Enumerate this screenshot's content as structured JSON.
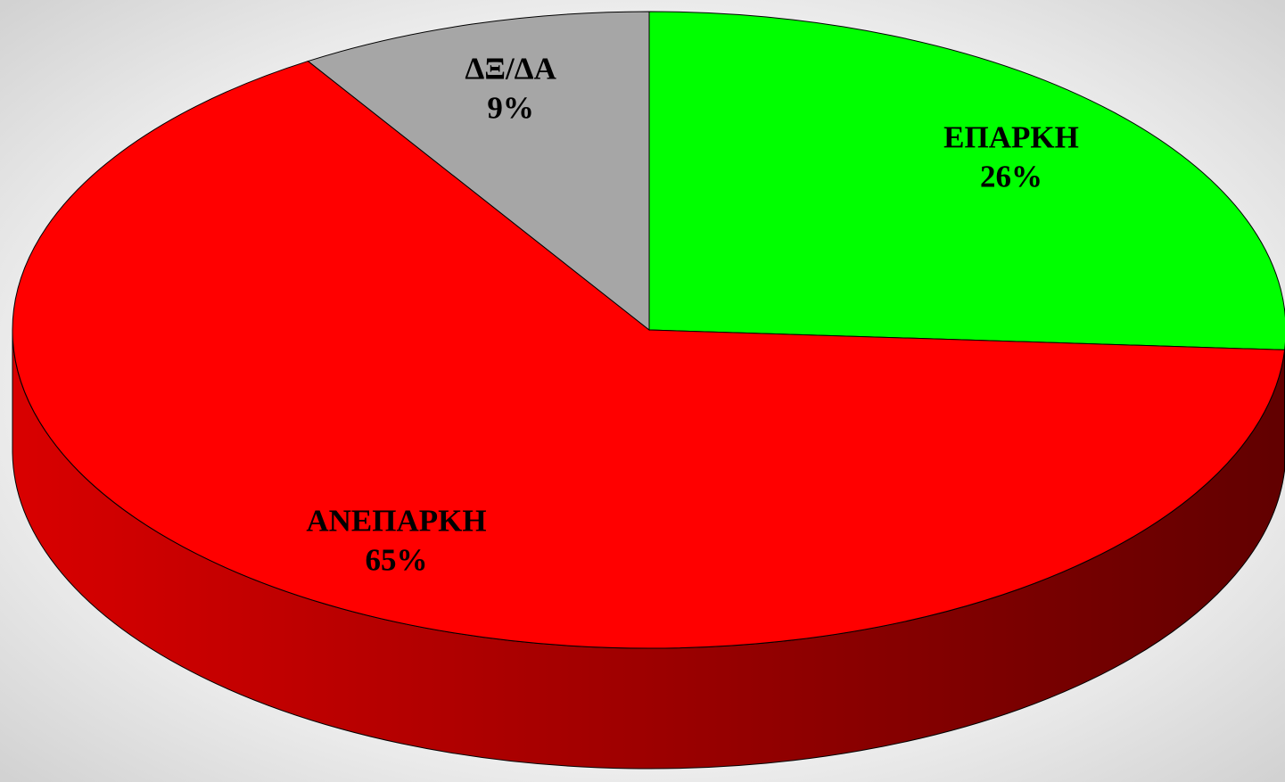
{
  "chart_data": {
    "type": "pie",
    "categories": [
      "ΕΠΑΡΚΗ",
      "ΑΝΕΠΑΡΚΗ",
      "ΔΞ/ΔΑ"
    ],
    "values": [
      26,
      65,
      9
    ],
    "value_labels": [
      "26%",
      "65%",
      "9%"
    ],
    "colors": [
      "#00ff00",
      "#ff0000",
      "#a6a6a6"
    ]
  }
}
